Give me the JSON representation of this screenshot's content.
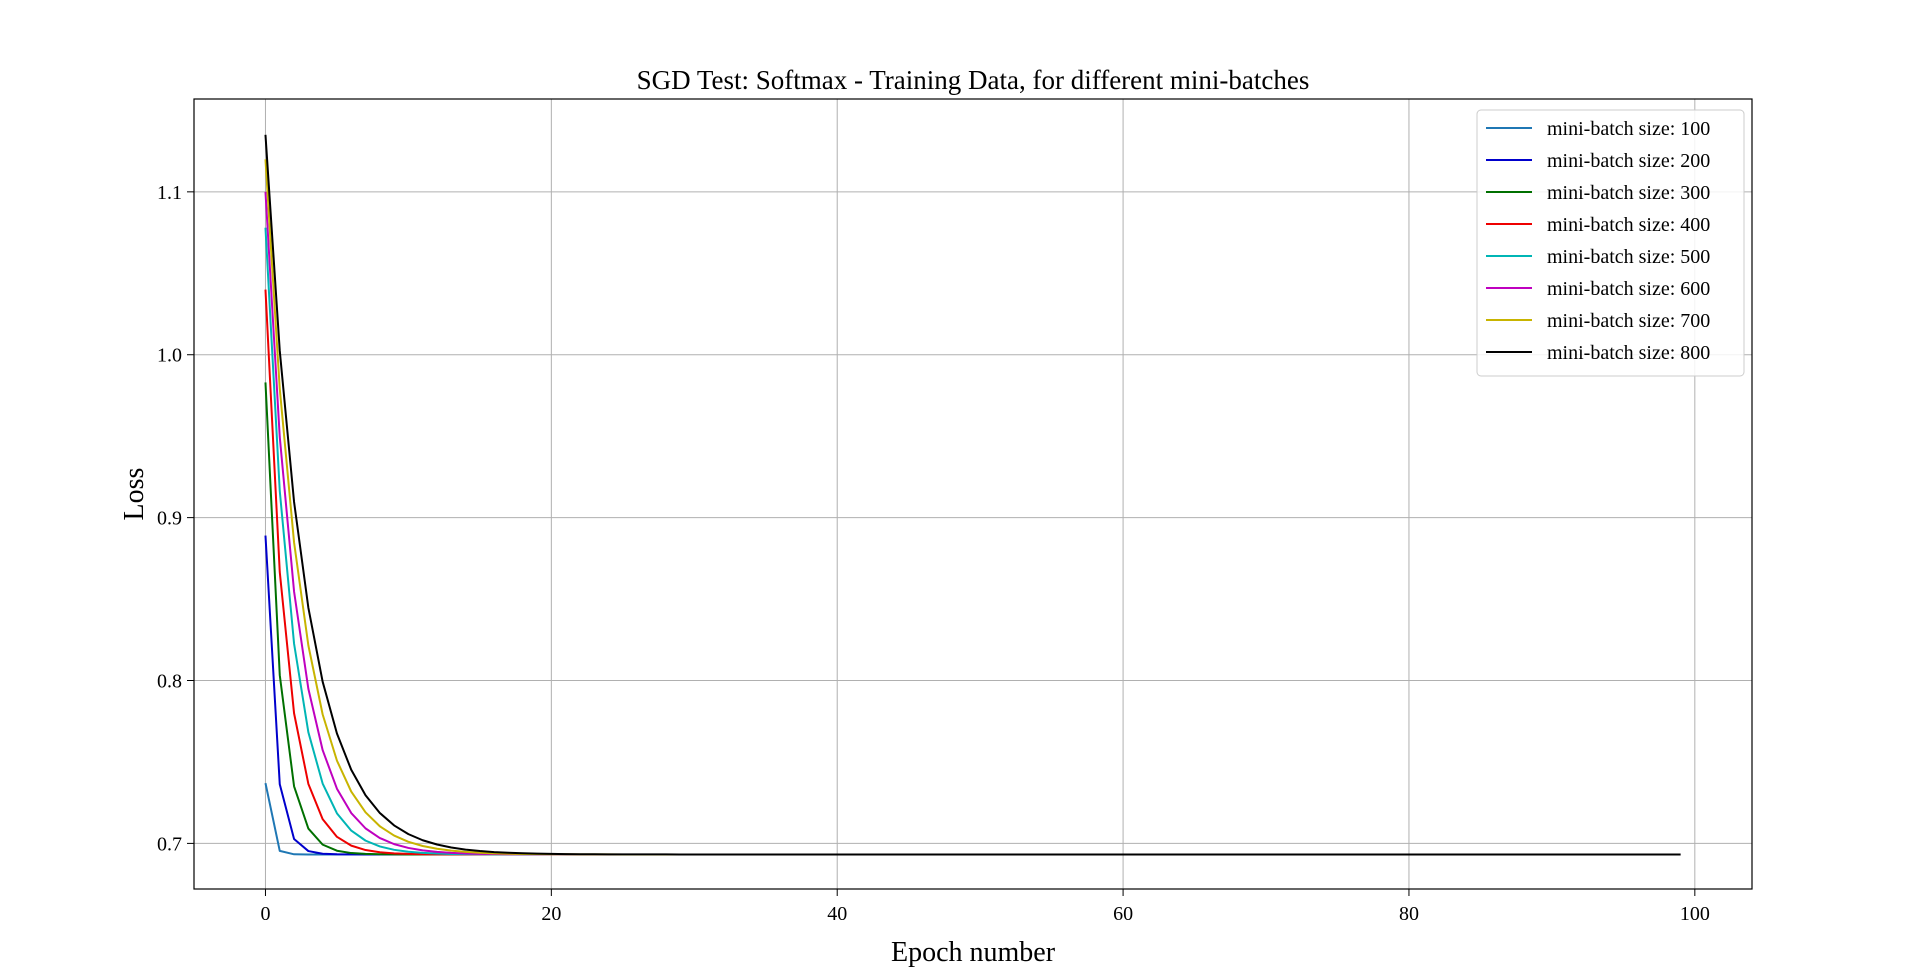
{
  "chart_data": {
    "type": "line",
    "title": "SGD Test: Softmax - Training Data, for different mini-batches",
    "xlabel": "Epoch number",
    "ylabel": "Loss",
    "xlim": [
      -5,
      104
    ],
    "ylim": [
      0.672,
      1.157
    ],
    "x_ticks": [
      0,
      20,
      40,
      60,
      80,
      100
    ],
    "x_tick_labels": [
      "0",
      "20",
      "40",
      "60",
      "80",
      "100"
    ],
    "y_ticks": [
      0.7,
      0.8,
      0.9,
      1.0,
      1.1
    ],
    "y_tick_labels": [
      "0.7",
      "0.8",
      "0.9",
      "1.0",
      "1.1"
    ],
    "grid": true,
    "legend_position": "top-right",
    "x": [
      0,
      1,
      2,
      3,
      4,
      5,
      6,
      7,
      8,
      9,
      10,
      11,
      12,
      13,
      14,
      15,
      16,
      17,
      18,
      19,
      20,
      21,
      22,
      23,
      24,
      25,
      26,
      27,
      28,
      29,
      30,
      31,
      32,
      33,
      34,
      35,
      36,
      37,
      38,
      39,
      40,
      41,
      42,
      43,
      44,
      45,
      46,
      47,
      48,
      49,
      50,
      51,
      52,
      53,
      54,
      55,
      56,
      57,
      58,
      59,
      60,
      61,
      62,
      63,
      64,
      65,
      66,
      67,
      68,
      69,
      70,
      71,
      72,
      73,
      74,
      75,
      76,
      77,
      78,
      79,
      80,
      81,
      82,
      83,
      84,
      85,
      86,
      87,
      88,
      89,
      90,
      91,
      92,
      93,
      94,
      95,
      96,
      97,
      98,
      99
    ],
    "series": [
      {
        "name": "mini-batch size: 100",
        "color": "#1f77b4",
        "start": 0.737,
        "plateau": 0.6932,
        "decay": 0.05
      },
      {
        "name": "mini-batch size: 200",
        "color": "#0000cc",
        "start": 0.889,
        "plateau": 0.6932,
        "decay": 0.22
      },
      {
        "name": "mini-batch size: 300",
        "color": "#007000",
        "start": 0.983,
        "plateau": 0.6932,
        "decay": 0.38
      },
      {
        "name": "mini-batch size: 400",
        "color": "#ee0000",
        "start": 1.04,
        "plateau": 0.6932,
        "decay": 0.5
      },
      {
        "name": "mini-batch size: 500",
        "color": "#00b5b5",
        "start": 1.078,
        "plateau": 0.6932,
        "decay": 0.58
      },
      {
        "name": "mini-batch size: 600",
        "color": "#bf00bf",
        "start": 1.1,
        "plateau": 0.6932,
        "decay": 0.63
      },
      {
        "name": "mini-batch size: 700",
        "color": "#c8b400",
        "start": 1.12,
        "plateau": 0.6932,
        "decay": 0.67
      },
      {
        "name": "mini-batch size: 800",
        "color": "#000000",
        "start": 1.135,
        "plateau": 0.6932,
        "decay": 0.7
      }
    ]
  }
}
